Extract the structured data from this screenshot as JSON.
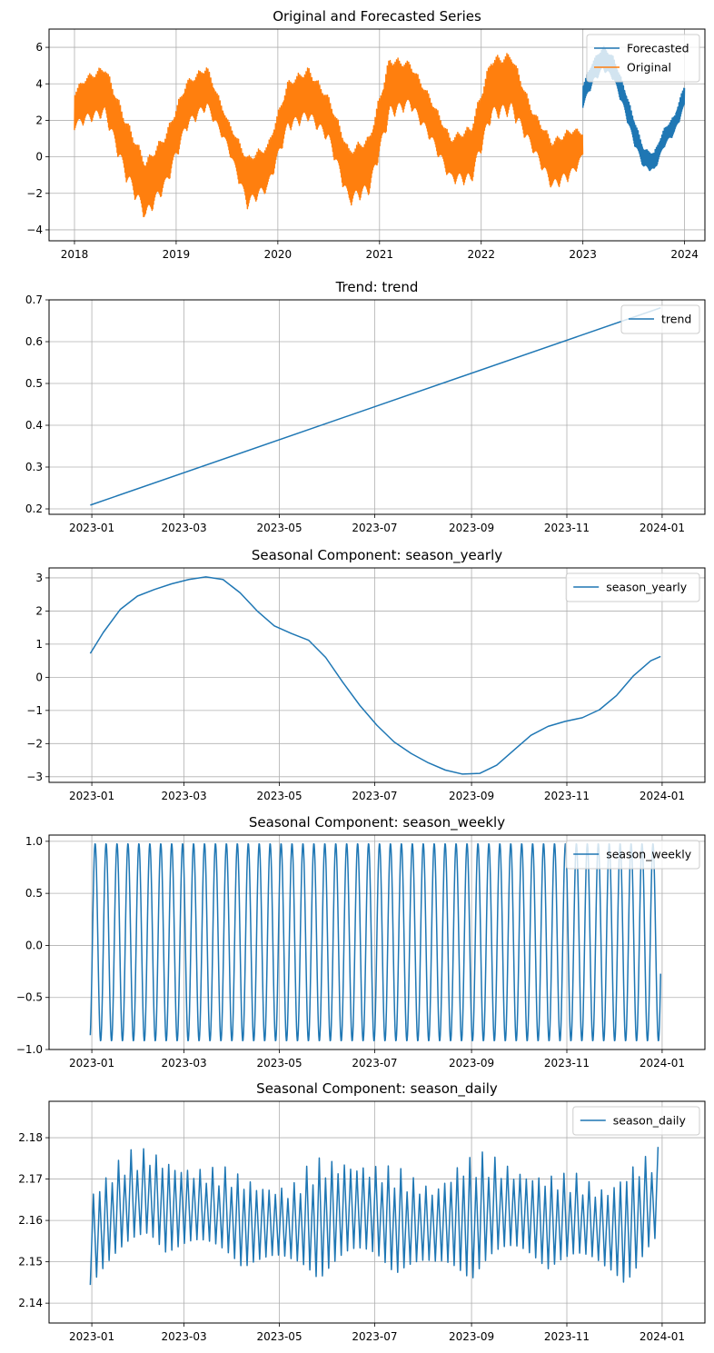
{
  "figure": {
    "background": "#ffffff"
  },
  "colors": {
    "blue": "#1f77b4",
    "orange": "#ff7f0e",
    "grid": "#b0b0b0"
  },
  "chart_data": [
    {
      "type": "line",
      "title": "Original and Forecasted Series",
      "xlabel": "",
      "ylabel": "",
      "xlim": [
        2017.75,
        2024.2
      ],
      "ylim": [
        -4.6,
        7.0
      ],
      "grid": true,
      "legend_position": "top-right",
      "x_ticks": [
        2018,
        2019,
        2020,
        2021,
        2022,
        2023,
        2024
      ],
      "x_tick_labels": [
        "2018",
        "2019",
        "2020",
        "2021",
        "2022",
        "2023",
        "2024"
      ],
      "y_ticks": [
        -4,
        -2,
        0,
        2,
        4,
        6
      ],
      "y_tick_labels": [
        "−4",
        "−2",
        "0",
        "2",
        "4",
        "6"
      ],
      "series": [
        {
          "name": "Original",
          "color": "#ff7f0e",
          "description": "daily observations, yearly cycle with daily/weekly oscillation",
          "x_range": [
            2018.0,
            2023.0
          ],
          "envelope_x": [
            2018.0,
            2018.1,
            2018.3,
            2018.5,
            2018.7,
            2018.9,
            2019.1,
            2019.3,
            2019.5,
            2019.7,
            2019.9,
            2020.1,
            2020.3,
            2020.5,
            2020.7,
            2020.9,
            2021.1,
            2021.3,
            2021.5,
            2021.7,
            2021.9,
            2022.1,
            2022.3,
            2022.5,
            2022.7,
            2022.9,
            2023.0
          ],
          "envelope_low": [
            1.0,
            1.2,
            1.5,
            -2.0,
            -4.3,
            -2.5,
            0.8,
            2.0,
            0.2,
            -3.5,
            -2.5,
            0.8,
            1.3,
            0.2,
            -3.4,
            -2.8,
            1.3,
            2.1,
            0.3,
            -2.0,
            -2.3,
            1.2,
            1.5,
            -0.2,
            -2.5,
            -1.8,
            -0.4
          ],
          "envelope_high": [
            4.1,
            5.0,
            5.7,
            3.0,
            0.6,
            2.1,
            4.8,
            5.6,
            2.5,
            0.7,
            1.3,
            4.8,
            5.6,
            3.9,
            1.2,
            1.9,
            6.3,
            5.8,
            3.9,
            1.7,
            2.5,
            6.3,
            6.5,
            3.2,
            1.6,
            2.3,
            1.7
          ]
        },
        {
          "name": "Forecasted",
          "color": "#1f77b4",
          "description": "forecast for 2023, envelope of rapidly oscillating series",
          "x_range": [
            2023.0,
            2024.0
          ],
          "envelope_x": [
            2023.0,
            2023.1,
            2023.2,
            2023.3,
            2023.4,
            2023.5,
            2023.6,
            2023.7,
            2023.8,
            2023.9,
            2024.0
          ],
          "envelope_low": [
            2.4,
            3.7,
            4.4,
            3.9,
            2.3,
            0.4,
            -0.9,
            -1.1,
            0.3,
            1.0,
            2.4
          ],
          "envelope_high": [
            4.3,
            5.6,
            6.4,
            5.8,
            4.3,
            2.5,
            0.7,
            0.5,
            1.8,
            2.5,
            4.3
          ]
        }
      ]
    },
    {
      "type": "line",
      "title": "Trend: trend",
      "xlabel": "",
      "ylabel": "",
      "xlim": [
        2022.925,
        2024.075
      ],
      "ylim": [
        0.187,
        0.7
      ],
      "grid": true,
      "legend_position": "top-right",
      "x_ticks": [
        2023.0,
        2023.1616,
        2023.3288,
        2023.4959,
        2023.6658,
        2023.8329,
        2024.0
      ],
      "x_tick_labels": [
        "2023-01",
        "2023-03",
        "2023-05",
        "2023-07",
        "2023-09",
        "2023-11",
        "2024-01"
      ],
      "y_ticks": [
        0.2,
        0.3,
        0.4,
        0.5,
        0.6,
        0.7
      ],
      "y_tick_labels": [
        "0.2",
        "0.3",
        "0.4",
        "0.5",
        "0.6",
        "0.7"
      ],
      "series": [
        {
          "name": "trend",
          "color": "#1f77b4",
          "x": [
            2022.9973,
            2023.9973
          ],
          "y": [
            0.209,
            0.681
          ]
        }
      ]
    },
    {
      "type": "line",
      "title": "Seasonal Component: season_yearly",
      "xlabel": "",
      "ylabel": "",
      "xlim": [
        2022.925,
        2024.075
      ],
      "ylim": [
        -3.17,
        3.3
      ],
      "grid": true,
      "legend_position": "top-right",
      "x_ticks": [
        2023.0,
        2023.1616,
        2023.3288,
        2023.4959,
        2023.6658,
        2023.8329,
        2024.0
      ],
      "x_tick_labels": [
        "2023-01",
        "2023-03",
        "2023-05",
        "2023-07",
        "2023-09",
        "2023-11",
        "2024-01"
      ],
      "y_ticks": [
        -3,
        -2,
        -1,
        0,
        1,
        2,
        3
      ],
      "y_tick_labels": [
        "−3",
        "−2",
        "−1",
        "0",
        "1",
        "2",
        "3"
      ],
      "series": [
        {
          "name": "season_yearly",
          "color": "#1f77b4",
          "x": [
            2022.9973,
            2023.02,
            2023.05,
            2023.08,
            2023.11,
            2023.14,
            2023.17,
            2023.2,
            2023.23,
            2023.26,
            2023.29,
            2023.32,
            2023.35,
            2023.38,
            2023.41,
            2023.44,
            2023.47,
            2023.5,
            2023.53,
            2023.56,
            2023.59,
            2023.62,
            2023.65,
            2023.68,
            2023.71,
            2023.74,
            2023.77,
            2023.8,
            2023.83,
            2023.86,
            2023.89,
            2023.92,
            2023.95,
            2023.98,
            2023.9973
          ],
          "y": [
            0.72,
            1.35,
            2.05,
            2.45,
            2.65,
            2.82,
            2.95,
            3.03,
            2.95,
            2.55,
            2.0,
            1.55,
            1.32,
            1.12,
            0.6,
            -0.15,
            -0.85,
            -1.45,
            -1.95,
            -2.3,
            -2.58,
            -2.8,
            -2.92,
            -2.9,
            -2.65,
            -2.2,
            -1.75,
            -1.48,
            -1.33,
            -1.22,
            -0.98,
            -0.55,
            0.05,
            0.5,
            0.63
          ]
        }
      ]
    },
    {
      "type": "line",
      "title": "Seasonal Component: season_weekly",
      "xlabel": "",
      "ylabel": "",
      "xlim": [
        2022.925,
        2024.075
      ],
      "ylim": [
        -1.0,
        1.06
      ],
      "grid": true,
      "legend_position": "top-right",
      "x_ticks": [
        2023.0,
        2023.1616,
        2023.3288,
        2023.4959,
        2023.6658,
        2023.8329,
        2024.0
      ],
      "x_tick_labels": [
        "2023-01",
        "2023-03",
        "2023-05",
        "2023-07",
        "2023-09",
        "2023-11",
        "2024-01"
      ],
      "y_ticks": [
        -1.0,
        -0.5,
        0.0,
        0.5,
        1.0
      ],
      "y_tick_labels": [
        "−1.0",
        "−0.5",
        "0.0",
        "0.5",
        "1.0"
      ],
      "series": [
        {
          "name": "season_weekly",
          "color": "#1f77b4",
          "description": "periodic with 7-day period, min about -0.92, max about 0.98",
          "period_days": 7,
          "min": -0.92,
          "max": 0.98,
          "x_range": [
            2022.9973,
            2023.9973
          ]
        }
      ]
    },
    {
      "type": "line",
      "title": "Seasonal Component: season_daily",
      "xlabel": "",
      "ylabel": "",
      "xlim": [
        2022.925,
        2024.075
      ],
      "ylim": [
        2.1352,
        2.1888
      ],
      "grid": true,
      "legend_position": "top-right",
      "x_ticks": [
        2023.0,
        2023.1616,
        2023.3288,
        2023.4959,
        2023.6658,
        2023.8329,
        2024.0
      ],
      "x_tick_labels": [
        "2023-01",
        "2023-03",
        "2023-05",
        "2023-07",
        "2023-09",
        "2023-11",
        "2024-01"
      ],
      "y_ticks": [
        2.14,
        2.15,
        2.16,
        2.17,
        2.18
      ],
      "y_tick_labels": [
        "2.14",
        "2.15",
        "2.16",
        "2.17",
        "2.18"
      ],
      "series": [
        {
          "name": "season_daily",
          "color": "#1f77b4",
          "description": "oscillating series with roughly 3.5-day cycle, range about 2.138 to 2.186",
          "x_range": [
            2022.9973,
            2023.9973
          ],
          "envelope_x": [
            2023.0,
            2023.05,
            2023.1,
            2023.15,
            2023.2,
            2023.25,
            2023.3,
            2023.35,
            2023.4,
            2023.45,
            2023.5,
            2023.55,
            2023.6,
            2023.65,
            2023.7,
            2023.75,
            2023.8,
            2023.85,
            2023.9,
            2023.95,
            2024.0
          ],
          "envelope_low": [
            2.139,
            2.141,
            2.148,
            2.146,
            2.145,
            2.144,
            2.142,
            2.141,
            2.139,
            2.14,
            2.142,
            2.141,
            2.139,
            2.138,
            2.141,
            2.143,
            2.143,
            2.142,
            2.14,
            2.138,
            2.146
          ],
          "envelope_high": [
            2.175,
            2.183,
            2.184,
            2.181,
            2.179,
            2.178,
            2.176,
            2.175,
            2.183,
            2.184,
            2.181,
            2.178,
            2.176,
            2.184,
            2.183,
            2.18,
            2.178,
            2.177,
            2.175,
            2.183,
            2.184
          ]
        }
      ]
    }
  ]
}
